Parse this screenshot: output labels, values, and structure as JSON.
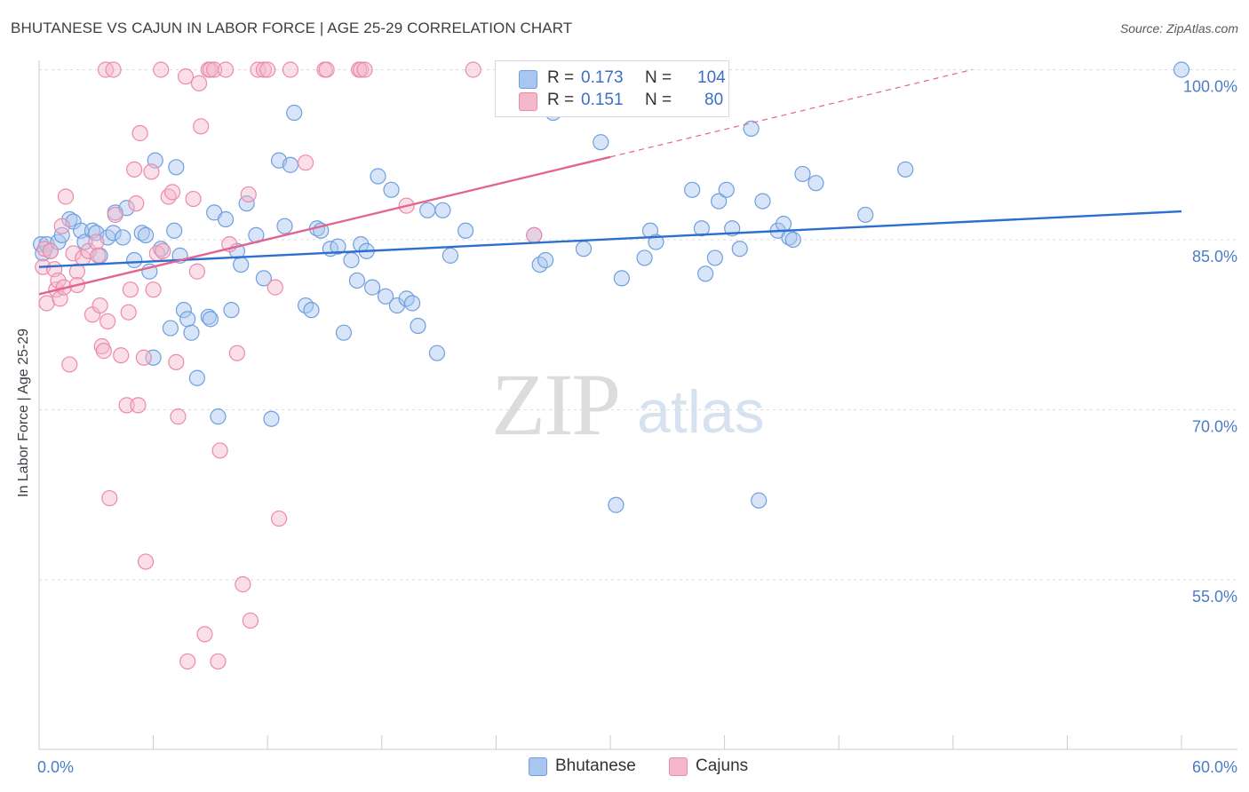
{
  "title": "BHUTANESE VS CAJUN IN LABOR FORCE | AGE 25-29 CORRELATION CHART",
  "source": "Source: ZipAtlas.com",
  "watermark": {
    "zip": "ZIP",
    "atlas": "atlas"
  },
  "legend": {
    "rows": [
      {
        "r_label": "R =",
        "r_value": "0.173",
        "n_label": "N =",
        "n_value": "104",
        "color": "#a9c6f0"
      },
      {
        "r_label": "R =",
        "r_value": "0.151",
        "n_label": "N =",
        "n_value": "80",
        "color": "#f5b8cb"
      }
    ]
  },
  "bottom_legend": [
    {
      "label": "Bhutanese",
      "color": "#a9c6f0"
    },
    {
      "label": "Cajuns",
      "color": "#f5b8cb"
    }
  ],
  "chart_data": {
    "type": "scatter",
    "title": "BHUTANESE VS CAJUN IN LABOR FORCE | AGE 25-29 CORRELATION CHART",
    "xlabel": "",
    "ylabel": "In Labor Force | Age 25-29",
    "xlim": [
      0,
      60
    ],
    "ylim": [
      40,
      102
    ],
    "x_tick_labels": [
      "0.0%",
      "60.0%"
    ],
    "y_ticks": [
      55,
      70,
      85,
      100
    ],
    "y_tick_labels": [
      "55.0%",
      "70.0%",
      "85.0%",
      "100.0%"
    ],
    "grid": true,
    "legend_position": "top-center",
    "colors": {
      "blue_fill": "#a9c6f0",
      "blue_stroke": "#6f9fde",
      "blue_line": "#2c6fcf",
      "pink_fill": "#f5b8cb",
      "pink_stroke": "#ec8aa8",
      "pink_line": "#e2648f",
      "tick_text": "#4a7cc9",
      "grid": "#d8dbe0",
      "axis": "#c8ccd2"
    },
    "series": [
      {
        "name": "Bhutanese",
        "color": "#a9c6f0",
        "trend": {
          "x": [
            0,
            60
          ],
          "y": [
            82.6,
            87.5
          ]
        },
        "points": [
          [
            0.1,
            84.6
          ],
          [
            0.2,
            83.8
          ],
          [
            0.4,
            84.6
          ],
          [
            0.6,
            84.0
          ],
          [
            1.0,
            84.8
          ],
          [
            1.2,
            85.4
          ],
          [
            1.6,
            86.8
          ],
          [
            1.8,
            86.6
          ],
          [
            2.2,
            85.8
          ],
          [
            2.4,
            84.8
          ],
          [
            2.8,
            85.8
          ],
          [
            3.0,
            85.6
          ],
          [
            3.2,
            83.6
          ],
          [
            3.6,
            85.2
          ],
          [
            3.9,
            85.6
          ],
          [
            4.0,
            87.4
          ],
          [
            4.4,
            85.2
          ],
          [
            4.6,
            87.8
          ],
          [
            5.0,
            83.2
          ],
          [
            5.4,
            85.6
          ],
          [
            5.6,
            85.4
          ],
          [
            5.8,
            82.2
          ],
          [
            6.0,
            74.6
          ],
          [
            6.1,
            92.0
          ],
          [
            6.4,
            84.2
          ],
          [
            6.9,
            77.2
          ],
          [
            7.1,
            85.8
          ],
          [
            7.2,
            91.4
          ],
          [
            7.4,
            83.6
          ],
          [
            7.6,
            78.8
          ],
          [
            7.8,
            78.0
          ],
          [
            8.0,
            76.8
          ],
          [
            8.3,
            72.8
          ],
          [
            8.9,
            78.2
          ],
          [
            9.0,
            78.0
          ],
          [
            9.2,
            87.4
          ],
          [
            9.4,
            69.4
          ],
          [
            9.8,
            86.8
          ],
          [
            10.1,
            78.8
          ],
          [
            10.4,
            84.0
          ],
          [
            10.6,
            82.8
          ],
          [
            10.9,
            88.2
          ],
          [
            11.4,
            85.4
          ],
          [
            11.8,
            81.6
          ],
          [
            12.2,
            69.2
          ],
          [
            12.6,
            92.0
          ],
          [
            12.9,
            86.2
          ],
          [
            13.2,
            91.6
          ],
          [
            13.4,
            96.2
          ],
          [
            14.0,
            79.2
          ],
          [
            14.3,
            78.8
          ],
          [
            14.6,
            86.0
          ],
          [
            14.8,
            85.8
          ],
          [
            15.3,
            84.2
          ],
          [
            15.7,
            84.4
          ],
          [
            16.0,
            76.8
          ],
          [
            16.4,
            83.2
          ],
          [
            16.7,
            81.4
          ],
          [
            16.9,
            84.6
          ],
          [
            17.2,
            84.0
          ],
          [
            17.5,
            80.8
          ],
          [
            17.8,
            90.6
          ],
          [
            18.2,
            80.0
          ],
          [
            18.5,
            89.4
          ],
          [
            18.8,
            79.2
          ],
          [
            19.3,
            79.8
          ],
          [
            19.6,
            79.4
          ],
          [
            19.9,
            77.4
          ],
          [
            20.4,
            87.6
          ],
          [
            20.9,
            75.0
          ],
          [
            21.2,
            87.6
          ],
          [
            21.6,
            83.6
          ],
          [
            22.4,
            85.8
          ],
          [
            27.0,
            96.2
          ],
          [
            26.0,
            85.4
          ],
          [
            26.3,
            82.8
          ],
          [
            26.6,
            83.2
          ],
          [
            28.6,
            84.2
          ],
          [
            29.5,
            93.6
          ],
          [
            30.3,
            61.6
          ],
          [
            30.6,
            81.6
          ],
          [
            31.8,
            83.4
          ],
          [
            32.1,
            85.8
          ],
          [
            32.4,
            84.8
          ],
          [
            34.3,
            89.4
          ],
          [
            34.8,
            86.0
          ],
          [
            35.0,
            82.0
          ],
          [
            35.5,
            83.4
          ],
          [
            35.7,
            88.4
          ],
          [
            36.1,
            89.4
          ],
          [
            36.4,
            86.0
          ],
          [
            36.8,
            84.2
          ],
          [
            37.4,
            94.8
          ],
          [
            38.0,
            88.4
          ],
          [
            37.8,
            62.0
          ],
          [
            38.8,
            85.8
          ],
          [
            39.1,
            86.4
          ],
          [
            39.4,
            85.2
          ],
          [
            39.6,
            85.0
          ],
          [
            40.1,
            90.8
          ],
          [
            40.8,
            90.0
          ],
          [
            43.4,
            87.2
          ],
          [
            45.5,
            91.2
          ],
          [
            60.0,
            100.0
          ]
        ]
      },
      {
        "name": "Cajuns",
        "color": "#f5b8cb",
        "trend": {
          "x": [
            0,
            30
          ],
          "y": [
            80.2,
            92.3
          ],
          "dashed_to": {
            "x": [
              30,
              49
            ],
            "y": [
              92.3,
              100.0
            ]
          }
        },
        "points": [
          [
            0.2,
            82.6
          ],
          [
            0.3,
            84.2
          ],
          [
            0.4,
            79.4
          ],
          [
            0.6,
            84.0
          ],
          [
            0.8,
            82.4
          ],
          [
            0.9,
            80.6
          ],
          [
            1.0,
            81.4
          ],
          [
            1.1,
            79.8
          ],
          [
            1.2,
            86.2
          ],
          [
            1.3,
            80.8
          ],
          [
            1.4,
            88.8
          ],
          [
            1.6,
            74.0
          ],
          [
            1.8,
            83.8
          ],
          [
            2.0,
            82.2
          ],
          [
            2.0,
            81.0
          ],
          [
            2.3,
            83.4
          ],
          [
            2.6,
            84.0
          ],
          [
            2.8,
            78.4
          ],
          [
            3.0,
            84.8
          ],
          [
            3.1,
            83.6
          ],
          [
            3.2,
            79.2
          ],
          [
            3.3,
            75.6
          ],
          [
            3.4,
            75.2
          ],
          [
            3.5,
            100.0
          ],
          [
            3.6,
            77.8
          ],
          [
            3.7,
            62.2
          ],
          [
            3.9,
            100.0
          ],
          [
            4.0,
            87.2
          ],
          [
            4.3,
            74.8
          ],
          [
            4.6,
            70.4
          ],
          [
            4.7,
            78.6
          ],
          [
            4.8,
            80.6
          ],
          [
            5.0,
            91.2
          ],
          [
            5.1,
            88.2
          ],
          [
            5.2,
            70.4
          ],
          [
            5.3,
            94.4
          ],
          [
            5.5,
            74.6
          ],
          [
            5.6,
            56.6
          ],
          [
            5.9,
            91.0
          ],
          [
            6.0,
            80.6
          ],
          [
            6.2,
            83.8
          ],
          [
            6.4,
            100.0
          ],
          [
            6.5,
            84.0
          ],
          [
            6.8,
            88.8
          ],
          [
            7.0,
            89.2
          ],
          [
            7.2,
            74.2
          ],
          [
            7.3,
            69.4
          ],
          [
            7.7,
            99.4
          ],
          [
            7.8,
            47.8
          ],
          [
            8.1,
            88.6
          ],
          [
            8.3,
            82.2
          ],
          [
            8.4,
            98.8
          ],
          [
            8.5,
            95.0
          ],
          [
            8.7,
            50.2
          ],
          [
            8.9,
            100.0
          ],
          [
            9.0,
            100.0
          ],
          [
            9.2,
            100.0
          ],
          [
            9.4,
            47.8
          ],
          [
            9.5,
            66.4
          ],
          [
            9.8,
            100.0
          ],
          [
            10.0,
            84.6
          ],
          [
            10.4,
            75.0
          ],
          [
            10.7,
            54.6
          ],
          [
            11.0,
            89.0
          ],
          [
            11.1,
            51.4
          ],
          [
            11.5,
            100.0
          ],
          [
            11.8,
            100.0
          ],
          [
            12.0,
            100.0
          ],
          [
            12.4,
            80.8
          ],
          [
            12.6,
            60.4
          ],
          [
            13.2,
            100.0
          ],
          [
            14.0,
            91.8
          ],
          [
            15.0,
            100.0
          ],
          [
            15.1,
            100.0
          ],
          [
            16.8,
            100.0
          ],
          [
            16.9,
            100.0
          ],
          [
            17.1,
            100.0
          ],
          [
            19.3,
            88.0
          ],
          [
            22.8,
            100.0
          ],
          [
            26.0,
            85.4
          ]
        ]
      }
    ]
  }
}
